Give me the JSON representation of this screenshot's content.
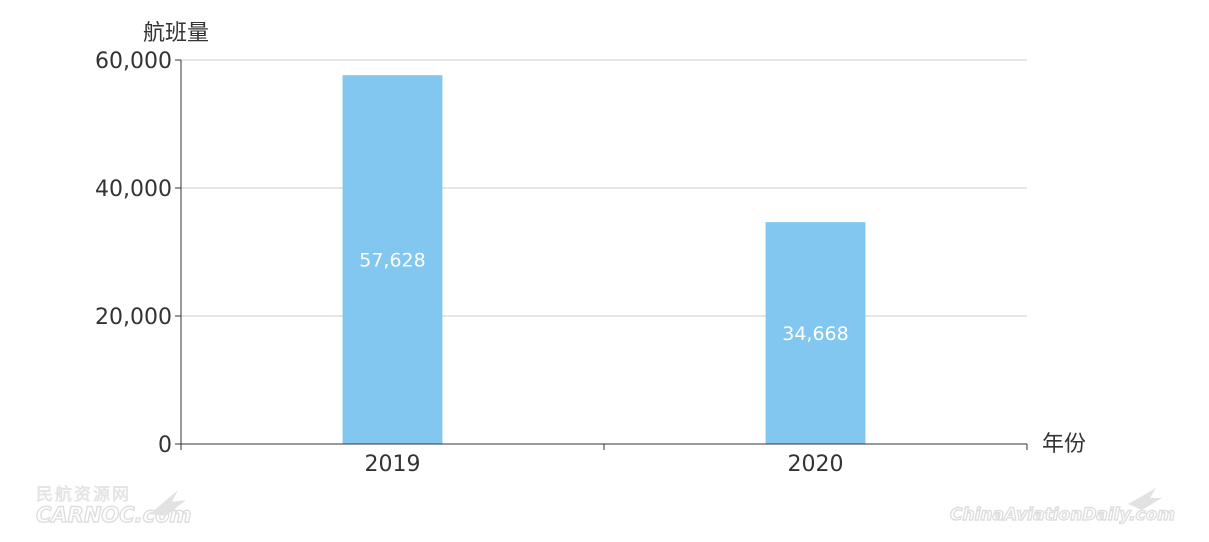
{
  "chart_data": {
    "type": "bar",
    "categories": [
      "2019",
      "2020"
    ],
    "values": [
      57628,
      34668
    ],
    "value_labels": [
      "57,628",
      "34,668"
    ],
    "xlabel": "年份",
    "ylabel": "航班量",
    "ylim": [
      0,
      60000
    ],
    "yticks": [
      0,
      20000,
      40000,
      60000
    ],
    "ytick_labels": [
      "0",
      "20,000",
      "40,000",
      "60,000"
    ],
    "grid": true,
    "legend": "none",
    "bar_color": "#82c7ef"
  },
  "watermarks": {
    "left_top": "民航资源网",
    "left_bottom": "CARNOC.com",
    "right": "ChinaAviationDaily.com"
  },
  "colors": {
    "axis": "#333333",
    "grid": "#cccccc",
    "watermark": "#e0e0e0"
  }
}
